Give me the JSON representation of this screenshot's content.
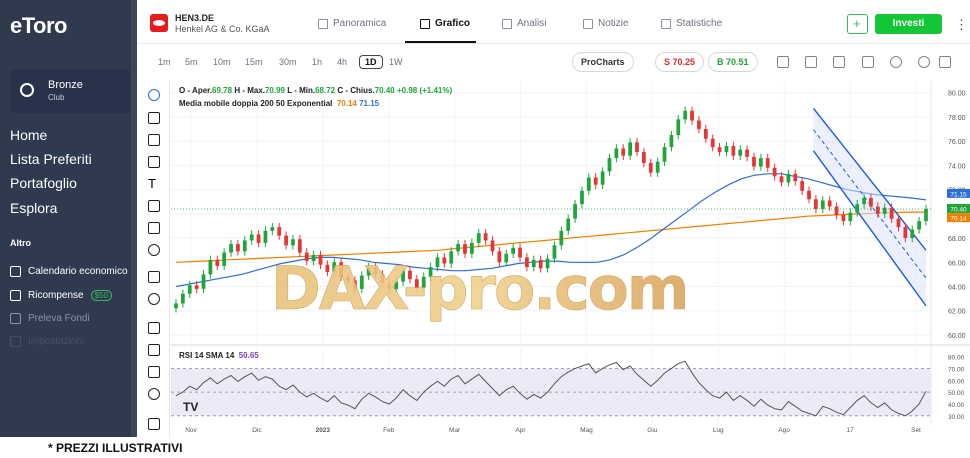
{
  "sidebar": {
    "logo": "eToro",
    "club": {
      "title": "Bronze",
      "subtitle": "Club"
    },
    "nav": [
      "Home",
      "Lista Preferiti",
      "Portafoglio",
      "Esplora"
    ],
    "section": "Altro",
    "sub": [
      {
        "label": "Calendario economico",
        "icon": "calendar-icon"
      },
      {
        "label": "Ricompense",
        "badge": "$50",
        "icon": "gift-icon"
      },
      {
        "label": "Preleva Fondi",
        "icon": "wallet-icon"
      },
      {
        "label": "Impostazioni",
        "icon": "gear-icon"
      }
    ]
  },
  "header": {
    "symbol": "HEN3.DE",
    "name": "Henkel AG & Co. KGaA",
    "tabs": [
      "Panoramica",
      "Grafico",
      "Analisi",
      "Notizie",
      "Statistiche"
    ],
    "active_tab": "Grafico",
    "invest": "Investi"
  },
  "chartbar": {
    "timeframes": [
      "1m",
      "5m",
      "10m",
      "15m",
      "30m",
      "1h",
      "4h",
      "1D",
      "1W"
    ],
    "selected": "1D",
    "procharts": "ProCharts",
    "sell": "S 70.25",
    "buy": "B 70.51"
  },
  "legend": {
    "ohlc": {
      "o_label": "O - Aper.",
      "o": "69.78",
      "h_label": "H - Max.",
      "h": "70.99",
      "l_label": "L - Min.",
      "l": "68.72",
      "c_label": "C - Chius.",
      "c": "70.40",
      "chg": "+0.98 (+1.41%)"
    },
    "ma": {
      "label": "Media mobile doppia 200 50 Exponential",
      "v1": "70.14",
      "v2": "71.15"
    },
    "rsi": {
      "label": "RSI 14 SMA 14",
      "v": "50.65"
    }
  },
  "watermark": "DAX-pro.com",
  "footnote": "* PREZZI ILLUSTRATIVI",
  "colors": {
    "up": "#1ea63b",
    "down": "#e63535",
    "ma200": "#ee7f00",
    "ma50": "#2e6fd4",
    "channel": "#1b5ce0",
    "accent": "#13c636"
  },
  "chart_data": {
    "type": "candlestick",
    "x_ticks": [
      "Nov",
      "Dic",
      "2023",
      "Feb",
      "Mar",
      "Apr",
      "Mag",
      "Giu",
      "Lug",
      "Ago",
      "17",
      "Set"
    ],
    "y_ticks": [
      60,
      62,
      64,
      66,
      68,
      70,
      72,
      74,
      76,
      78,
      80
    ],
    "ylim": [
      59.5,
      80.8
    ],
    "price_labels": [
      {
        "v": 71.15,
        "label": "71.15",
        "color": "#2e6fd4"
      },
      {
        "v": 70.4,
        "label": "70.40",
        "color": "#1ea63b"
      },
      {
        "v": 70.14,
        "label": "70.14",
        "color": "#ee7f00"
      }
    ],
    "close": [
      62.6,
      63.4,
      64.1,
      63.8,
      65.0,
      66.2,
      65.7,
      66.8,
      67.5,
      66.9,
      67.8,
      68.3,
      67.6,
      68.6,
      68.9,
      68.2,
      67.4,
      67.9,
      66.8,
      66.1,
      66.6,
      65.8,
      65.2,
      66.0,
      64.8,
      64.5,
      63.8,
      64.9,
      65.6,
      65.0,
      64.3,
      63.8,
      64.4,
      65.3,
      64.6,
      63.9,
      64.8,
      65.6,
      66.4,
      65.9,
      66.9,
      67.5,
      66.7,
      67.6,
      68.4,
      67.8,
      66.9,
      66.0,
      66.7,
      67.2,
      66.4,
      65.6,
      66.2,
      65.5,
      66.3,
      67.4,
      68.6,
      69.6,
      70.8,
      71.9,
      73.0,
      72.4,
      73.5,
      74.6,
      75.4,
      74.8,
      75.9,
      75.1,
      74.2,
      73.4,
      74.3,
      75.5,
      76.5,
      77.8,
      78.5,
      77.7,
      77.0,
      76.2,
      75.5,
      75.1,
      75.6,
      74.8,
      75.3,
      74.7,
      73.9,
      74.6,
      73.8,
      73.1,
      72.6,
      73.3,
      72.7,
      71.9,
      71.2,
      70.4,
      71.1,
      70.6,
      69.9,
      69.4,
      70.1,
      70.8,
      71.3,
      70.6,
      70.0,
      70.5,
      69.6,
      68.9,
      68.0,
      68.7,
      69.4,
      70.4
    ],
    "ma200": [
      66.0,
      66.05,
      66.1,
      66.15,
      66.2,
      66.25,
      66.3,
      66.35,
      66.4,
      66.45,
      66.5,
      66.55,
      66.6,
      66.65,
      66.7,
      66.75,
      66.8,
      66.85,
      66.9,
      66.95,
      67.0,
      67.1,
      67.2,
      67.3,
      67.4,
      67.5,
      67.6,
      67.7,
      67.8,
      67.9,
      68.0,
      68.1,
      68.2,
      68.3,
      68.4,
      68.5,
      68.6,
      68.7,
      68.8,
      68.9,
      69.0,
      69.1,
      69.2,
      69.3,
      69.4,
      69.5,
      69.6,
      69.7,
      69.8,
      69.85,
      69.9,
      69.95,
      70.0,
      70.05,
      70.1,
      70.12,
      70.14,
      70.14
    ],
    "ma50": [
      64.0,
      64.2,
      64.4,
      64.6,
      64.8,
      65.0,
      65.3,
      65.6,
      65.9,
      66.1,
      66.3,
      66.4,
      66.4,
      66.3,
      66.2,
      66.0,
      65.9,
      65.8,
      65.6,
      65.5,
      65.4,
      65.3,
      65.3,
      65.4,
      65.5,
      65.7,
      65.9,
      66.0,
      66.1,
      66.1,
      66.0,
      66.0,
      66.0,
      66.2,
      66.6,
      67.2,
      67.9,
      68.7,
      69.5,
      70.3,
      71.1,
      71.8,
      72.4,
      72.9,
      73.2,
      73.3,
      73.3,
      73.1,
      72.9,
      72.6,
      72.3,
      72.0,
      71.8,
      71.6,
      71.5,
      71.4,
      71.3,
      71.15
    ],
    "channel": {
      "upper": [
        [
          0.85,
          78.7
        ],
        [
          1.0,
          67.0
        ]
      ],
      "lower": [
        [
          0.85,
          75.2
        ],
        [
          1.0,
          62.4
        ]
      ]
    },
    "rsi_ylim": [
      29,
      83
    ],
    "rsi_ticks": [
      30,
      40,
      50,
      60,
      70,
      80
    ],
    "rsi_band": [
      30,
      70
    ],
    "rsi": [
      47,
      50,
      55,
      52,
      58,
      62,
      57,
      61,
      64,
      59,
      63,
      66,
      60,
      63,
      61,
      55,
      52,
      56,
      50,
      46,
      49,
      45,
      42,
      47,
      41,
      39,
      36,
      44,
      49,
      46,
      42,
      40,
      45,
      52,
      47,
      43,
      50,
      55,
      59,
      55,
      61,
      64,
      57,
      61,
      65,
      59,
      53,
      47,
      52,
      55,
      49,
      44,
      48,
      45,
      50,
      57,
      63,
      67,
      70,
      72,
      74,
      66,
      70,
      73,
      75,
      69,
      72,
      65,
      60,
      55,
      60,
      66,
      70,
      74,
      76,
      66,
      58,
      52,
      47,
      45,
      50,
      43,
      47,
      43,
      38,
      44,
      39,
      36,
      35,
      42,
      38,
      34,
      32,
      30,
      38,
      36,
      33,
      31,
      37,
      43,
      47,
      41,
      37,
      41,
      35,
      32,
      30,
      34,
      40,
      50.65
    ]
  }
}
